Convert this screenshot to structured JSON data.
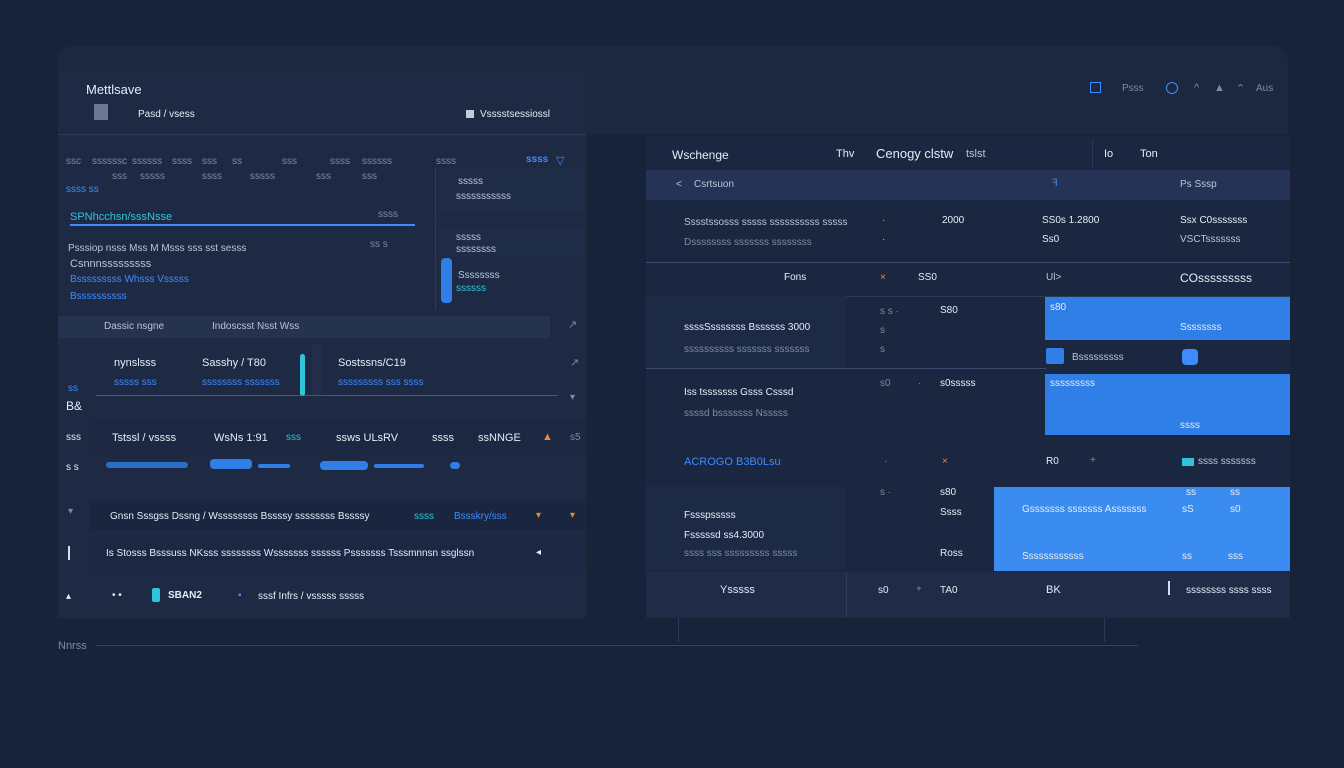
{
  "app": {
    "title": "Mettlsave",
    "breadcrumb": "Pasd / vsess",
    "top_right_label": "Vsssstsessiossl"
  },
  "header": {
    "icons": [
      "square-icon",
      "globe-icon",
      "warning-icon"
    ],
    "label1": "Psss",
    "label2": "Aus"
  },
  "left": {
    "col_headers": [
      "ssc",
      "ssssssc",
      "ssssss",
      "ssss",
      "sss",
      "ss",
      "sss",
      "ssss",
      "ssssss",
      "ssss"
    ],
    "tab_active": "ssss",
    "col_sub": [
      "sss",
      "sssss",
      "ssss",
      "sssss",
      "sss",
      "sss"
    ],
    "tag": "ssss ss",
    "highlight_label": "SPNhcchsn/sssNsse",
    "highlight_val": "ssss",
    "notes": [
      "Psssiop nsss  Mss  M  Msss  sss sst sesss",
      "Csnnnsssssssss",
      "Bsssssssss Whsss  Vsssss",
      "Bssssssssss"
    ],
    "side_items": [
      {
        "label": "sssss",
        "val": "sssssssssss"
      },
      {
        "label": "sssss",
        "val": "ssssssss"
      },
      {
        "label": "Ssssssss",
        "val": "ssssss"
      }
    ],
    "section_header": {
      "a": "Dassic nsgne",
      "b": "Indoscsst Nsst Wss"
    },
    "metrics": [
      {
        "label": "nynslsss",
        "sub": "sssss sss"
      },
      {
        "label": "Sasshy / T80",
        "sub": "ssssssss sssssss"
      },
      {
        "label": "Sostssns/C19",
        "sub": "sssssssss sss ssss"
      }
    ],
    "side_label": "B&",
    "summary": [
      {
        "a": "Tstssl / vssss"
      },
      {
        "a": "WsNs 1:91"
      },
      {
        "a": "sss"
      },
      {
        "a": "ssws ULsRV"
      },
      {
        "a": "ssss"
      },
      {
        "a": "ssNNGE"
      },
      {
        "a": "s5"
      }
    ],
    "list1": {
      "text": "Gnsn Sssgss Dssng / Wssssssss Bssssy  ssssssss Bssssy",
      "tag1": "ssss",
      "tag2": "Bssskry/sss"
    },
    "list2": {
      "text": "Is Stosss Bsssuss NKsss  ssssssss  Wsssssss  ssssss Psssssss  Tsssmnnsn ssglssn"
    },
    "footer": {
      "chip": "SBAN2",
      "text": "sssf  Infrs / vsssss sssss"
    },
    "bottom_label": "Nnrss"
  },
  "right": {
    "header": {
      "title": "Wschenge",
      "col2": "Thv",
      "col3": "Cenogy clstw",
      "col4": "tslst",
      "col5": "Io",
      "col6": "Ton"
    },
    "sub": {
      "a": "Csrtsuon",
      "b": "Ps Sssp",
      "c": "ss"
    },
    "rows": [
      {
        "a": "Sssstssosss sssss  ssssssssss  sssss",
        "b": "Dssssssss sssssss  ssssssss",
        "c": "2000",
        "d": "SS0s 1.2800",
        "e": "Ss0",
        "f": "Ssx C0sssssss",
        "g": "VSCTsssssss"
      },
      {
        "a": "Fons",
        "b": "SS0",
        "c": "Ul>",
        "d": "COsssssssss"
      },
      {
        "a": "ssssSsssssss Bssssss 3000",
        "b": "ssssssssss sssssss sssssss",
        "c": "S80",
        "d": "s80",
        "e": "Ssssssss",
        "f": "Bsssssssss"
      },
      {
        "a": "Iss tsssssss Gsss Csssd",
        "b": "ssssd bsssssss Nsssss",
        "c": "s0sssss",
        "d": "sssssssss"
      },
      {
        "a": "ACROGO B3B0Lsu",
        "b": "R0",
        "c": "ssss sssssss"
      },
      {
        "a": "Fssspsssss",
        "b": "Fsssssd  ss4.3000",
        "c": "ssss sss sssssssss  sssss",
        "d": "Gsssssss sssssss Asssssss",
        "e": "Ssssssssssss"
      },
      {
        "a": "Ysssss",
        "b": "s0",
        "c": "TA0",
        "d": "BK",
        "e": "ssssssss  ssss  ssss"
      }
    ]
  },
  "colors": {
    "accent": "#2f7fe6",
    "teal": "#2fc4d9",
    "bg": "#182339",
    "panel": "#1e2a44",
    "orange": "#f0863a"
  }
}
